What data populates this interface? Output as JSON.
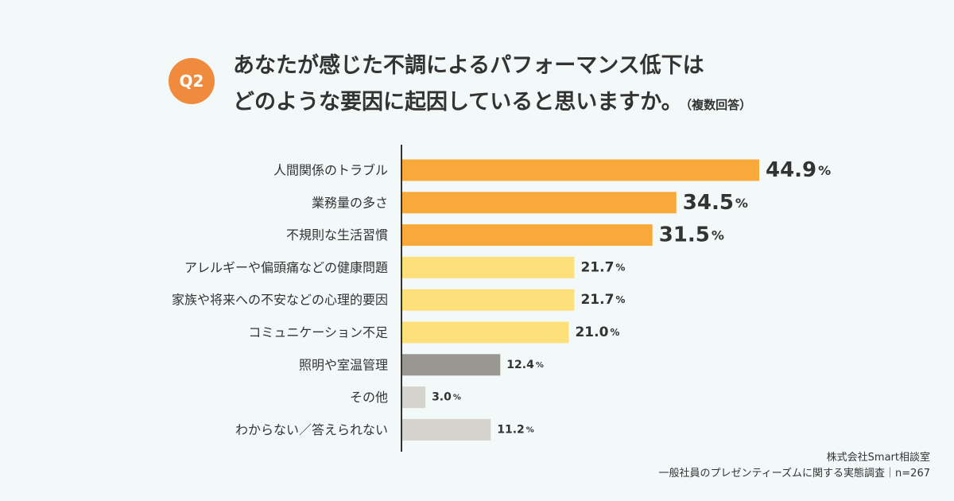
{
  "header": {
    "badge": "Q2",
    "title_line1": "あなたが感じた不調によるパフォーマンス低下は",
    "title_line2": "どのような要因に起因していると思いますか。",
    "title_note": "（複数回答）"
  },
  "footer": {
    "line1": "株式会社Smart相談室",
    "line2": "一般社員のプレゼンティーズムに関する実態調査｜n=267"
  },
  "chart_data": {
    "type": "bar",
    "orientation": "horizontal",
    "unit": "%",
    "xlim": [
      0,
      50
    ],
    "grid": false,
    "categories": [
      "人間関係のトラブル",
      "業務量の多さ",
      "不規則な生活習慣",
      "アレルギーや偏頭痛などの健康問題",
      "家族や将来への不安などの心理的要因",
      "コミュニケーション不足",
      "照明や室温管理",
      "その他",
      "わからない／答えられない"
    ],
    "values": [
      44.9,
      34.5,
      31.5,
      21.7,
      21.7,
      21.0,
      12.4,
      3.0,
      11.2
    ],
    "bar_colors": [
      "#f9a93a",
      "#f9a93a",
      "#f9a93a",
      "#fde07a",
      "#fde07a",
      "#fde07a",
      "#9a9790",
      "#d4d3cd",
      "#d4d3cd"
    ],
    "label_sizes": [
      "large",
      "large",
      "large",
      "medium",
      "medium",
      "medium",
      "small",
      "small",
      "small"
    ]
  }
}
